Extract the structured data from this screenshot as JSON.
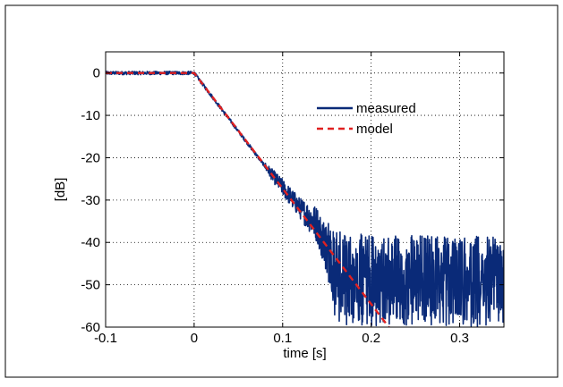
{
  "chart_data": {
    "type": "line",
    "title": "",
    "xlabel": "time [s]",
    "ylabel": "[dB]",
    "xlim": [
      -0.1,
      0.35
    ],
    "ylim": [
      -60,
      5
    ],
    "xticks": [
      -0.1,
      0,
      0.1,
      0.2,
      0.3
    ],
    "xtick_labels": [
      "-0.1",
      "0",
      "0.1",
      "0.2",
      "0.3"
    ],
    "yticks": [
      -60,
      -50,
      -40,
      -30,
      -20,
      -10,
      0
    ],
    "ytick_labels": [
      "-60",
      "-50",
      "-40",
      "-30",
      "-20",
      "-10",
      "0"
    ],
    "grid": true,
    "grid_style": "dotted",
    "legend_position": "upper-right",
    "series": [
      {
        "name": "measured",
        "color": "#0a2a78",
        "style": "solid",
        "x": [
          -0.1,
          0.0,
          0.02,
          0.04,
          0.06,
          0.08,
          0.1,
          0.12,
          0.14,
          0.16,
          0.18,
          0.2,
          0.22,
          0.25,
          0.3,
          0.35
        ],
        "y": [
          0,
          0,
          -5.5,
          -11,
          -16.5,
          -22,
          -27,
          -32,
          -36,
          -39,
          -41,
          -42,
          -43,
          -44,
          -44,
          -44
        ],
        "noise_envelope": {
          "x": [
            0.08,
            0.1,
            0.12,
            0.14,
            0.15,
            0.16,
            0.18,
            0.2,
            0.25,
            0.3,
            0.35
          ],
          "upper": [
            -21,
            -25,
            -30,
            -33,
            -35,
            -37,
            -38,
            -38,
            -38,
            -38,
            -39
          ],
          "lower": [
            -23,
            -29,
            -35,
            -42,
            -48,
            -60,
            -60,
            -60,
            -60,
            -60,
            -60
          ]
        }
      },
      {
        "name": "model",
        "color": "#e02020",
        "style": "dashed",
        "x": [
          -0.1,
          0.0,
          0.22
        ],
        "y": [
          0,
          0,
          -60
        ]
      }
    ],
    "legend": {
      "entries": [
        "measured",
        "model"
      ]
    }
  }
}
